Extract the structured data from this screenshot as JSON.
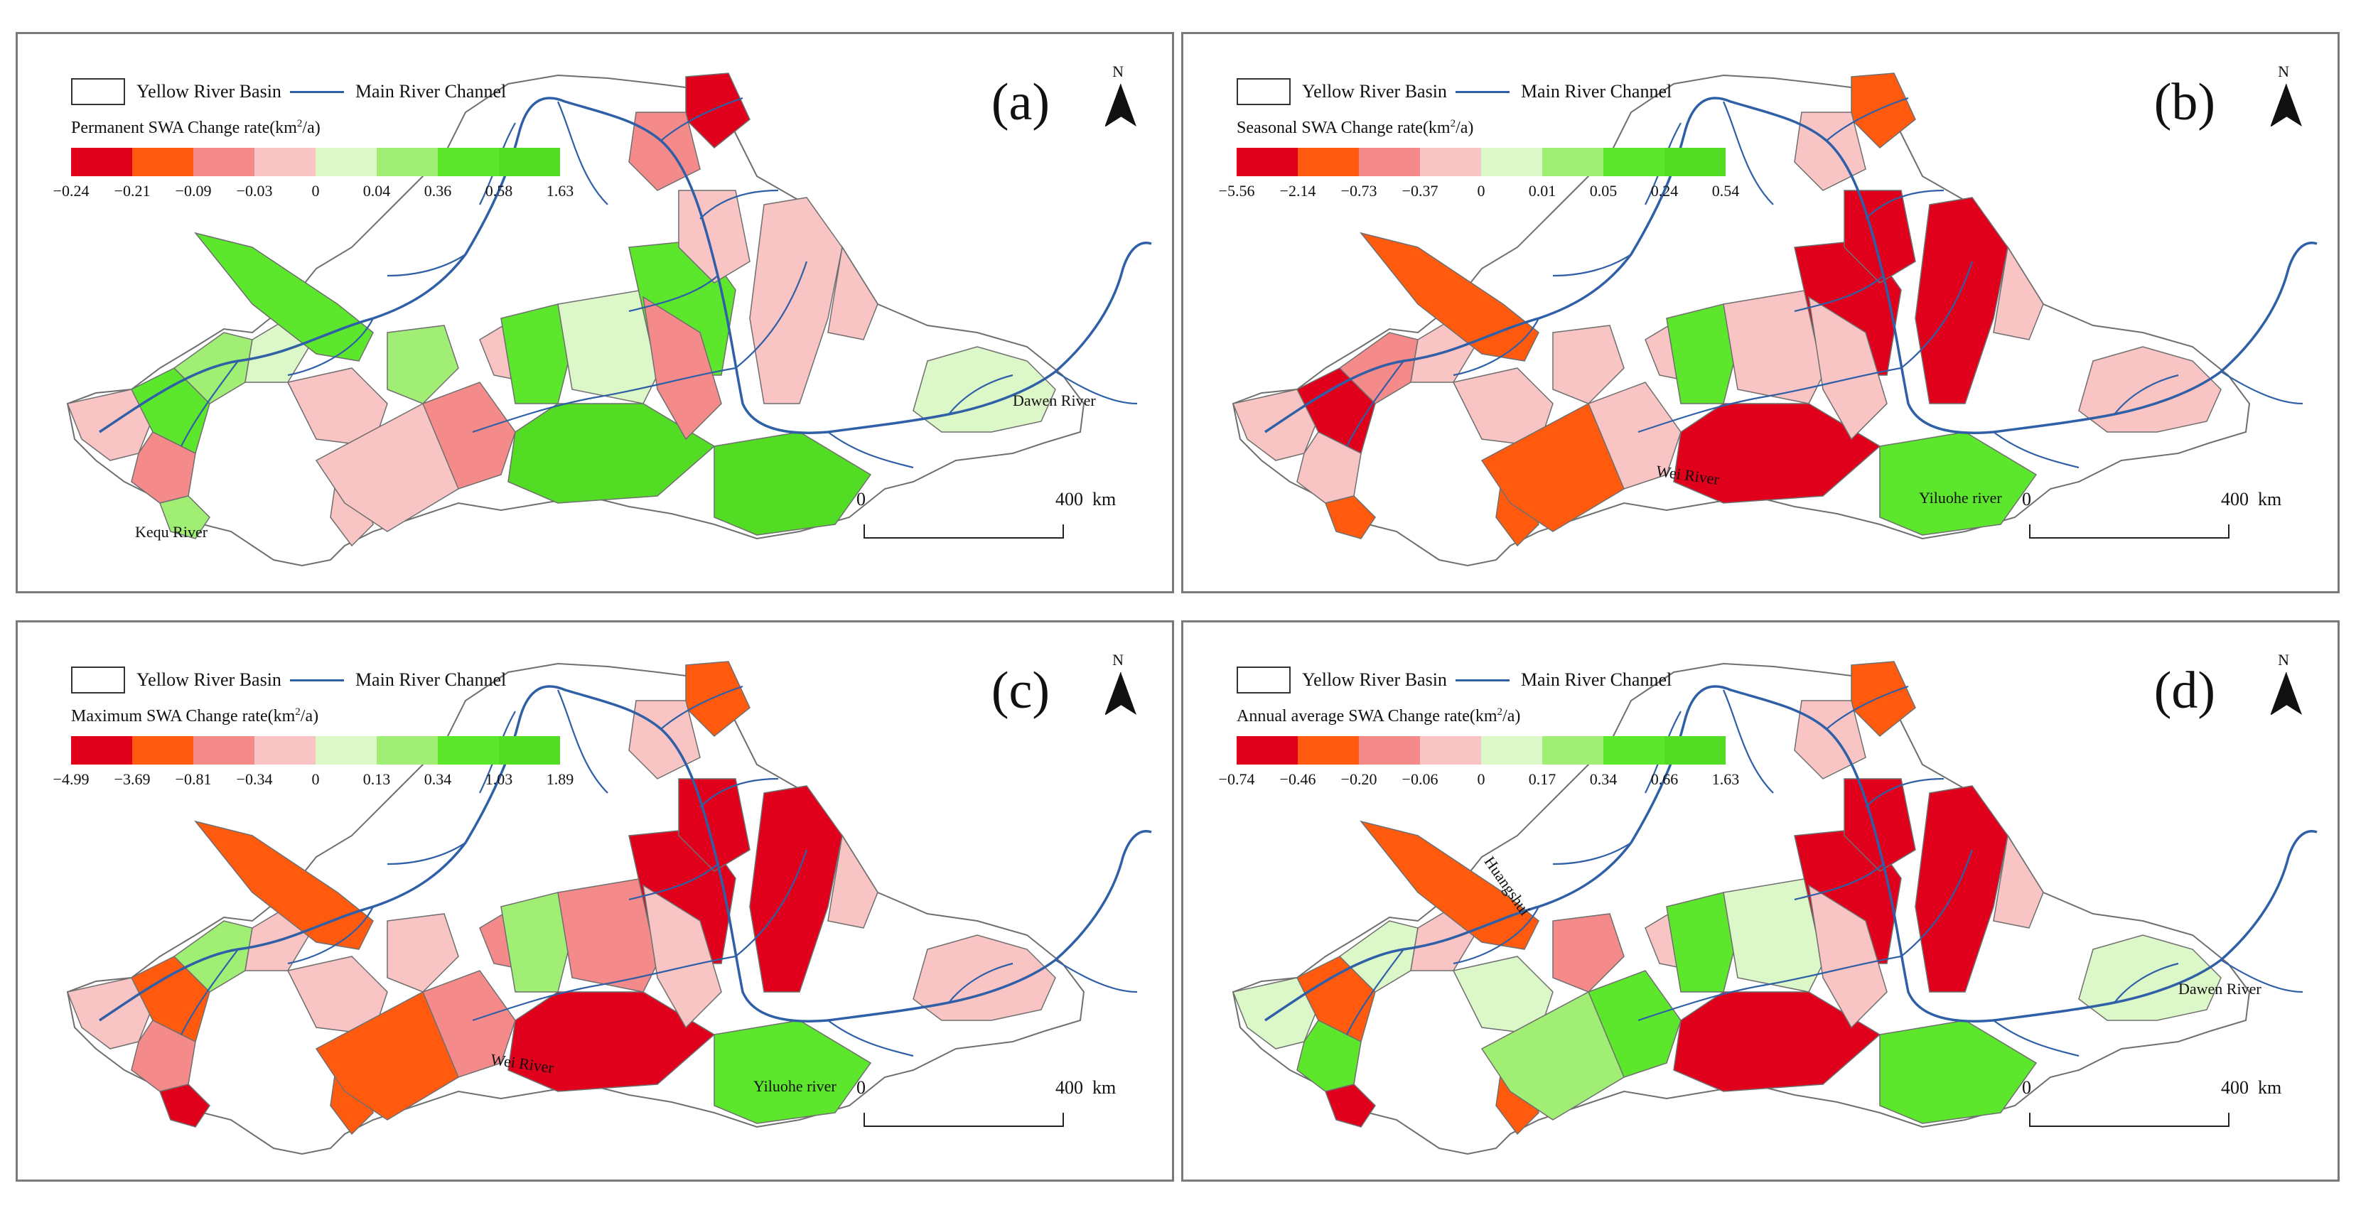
{
  "legend": {
    "basin_label": "Yellow River Basin",
    "channel_label": "Main River Channel",
    "north": "N",
    "scale_zero": "0",
    "scale_max": "400",
    "scale_unit": "km"
  },
  "colors": {
    "basin_fill": "#ffffff",
    "river": "#2f5fa6",
    "boundary": "#6f6f6f"
  },
  "panels": [
    {
      "label": "(a)",
      "title_prefix": "Permanent SWA Change rate(km",
      "title_sup": "2",
      "title_suffix": "/a)",
      "ticks": [
        "−0.24",
        "−0.21",
        "−0.09",
        "−0.03",
        "0",
        "0.04",
        "0.36",
        "0.58",
        "1.63"
      ],
      "colors": [
        "#e0001b",
        "#ff5a0e",
        "#f58a8a",
        "#f9c4c4",
        "#dcf7c8",
        "#a0ee74",
        "#5ce62c",
        "#52dd24"
      ],
      "regions": [
        3,
        6,
        2,
        5,
        5,
        4,
        3,
        3,
        6,
        5,
        3,
        2,
        3,
        7,
        6,
        4,
        6,
        2,
        3,
        7,
        3,
        0,
        2,
        3,
        4
      ],
      "annotations": [
        {
          "text": "Dawen River",
          "at": "dawen"
        },
        {
          "text": "Kequ River",
          "at": "kequ"
        }
      ]
    },
    {
      "label": "(b)",
      "title_prefix": "Seasonal SWA Change rate(km",
      "title_sup": "2",
      "title_suffix": "/a)",
      "ticks": [
        "−5.56",
        "−2.14",
        "−0.73",
        "−0.37",
        "0",
        "0.01",
        "0.05",
        "0.24",
        "0.54"
      ],
      "colors": [
        "#e0001b",
        "#ff5a0e",
        "#f58a8a",
        "#f9c4c4",
        "#dcf7c8",
        "#a0ee74",
        "#5ce62c",
        "#52dd24"
      ],
      "regions": [
        3,
        0,
        3,
        1,
        2,
        3,
        1,
        3,
        1,
        3,
        1,
        3,
        3,
        0,
        6,
        3,
        0,
        3,
        0,
        6,
        0,
        1,
        3,
        3,
        3
      ],
      "annotations": [
        {
          "text": "Wei River",
          "at": "wei"
        },
        {
          "text": "Yiluohe river",
          "at": "yiluo"
        }
      ]
    },
    {
      "label": "(c)",
      "title_prefix": "Maximum SWA Change rate(km",
      "title_sup": "2",
      "title_suffix": "/a)",
      "ticks": [
        "−4.99",
        "−3.69",
        "−0.81",
        "−0.34",
        "0",
        "0.13",
        "0.34",
        "1.03",
        "1.89"
      ],
      "colors": [
        "#e0001b",
        "#ff5a0e",
        "#f58a8a",
        "#f9c4c4",
        "#dcf7c8",
        "#a0ee74",
        "#5ce62c",
        "#52dd24"
      ],
      "regions": [
        3,
        1,
        2,
        0,
        5,
        3,
        1,
        3,
        1,
        3,
        1,
        2,
        2,
        0,
        5,
        2,
        0,
        3,
        0,
        6,
        0,
        1,
        3,
        3,
        3
      ],
      "annotations": [
        {
          "text": "Wei River",
          "at": "wei"
        },
        {
          "text": "Yiluohe river",
          "at": "yiluo"
        }
      ]
    },
    {
      "label": "(d)",
      "title_prefix": "Annual average SWA Change rate(km",
      "title_sup": "2",
      "title_suffix": "/a)",
      "ticks": [
        "−0.74",
        "−0.46",
        "−0.20",
        "−0.06",
        "0",
        "0.17",
        "0.34",
        "0.66",
        "1.63"
      ],
      "colors": [
        "#e0001b",
        "#ff5a0e",
        "#f58a8a",
        "#f9c4c4",
        "#dcf7c8",
        "#a0ee74",
        "#5ce62c",
        "#52dd24"
      ],
      "regions": [
        4,
        1,
        6,
        0,
        4,
        3,
        1,
        4,
        1,
        2,
        5,
        6,
        3,
        0,
        6,
        4,
        0,
        3,
        0,
        6,
        0,
        1,
        3,
        3,
        4
      ],
      "annotations": [
        {
          "text": "Huangshui",
          "at": "huang"
        },
        {
          "text": "Dawen River",
          "at": "dawen"
        }
      ]
    }
  ]
}
